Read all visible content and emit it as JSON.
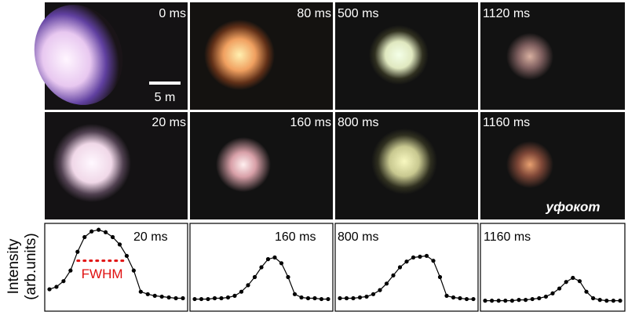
{
  "figure": {
    "y_label": [
      "Intensity",
      "(arb.units)"
    ],
    "scale_bar": "5 m",
    "watermark": "уфокот",
    "images": [
      "0 ms",
      "80 ms",
      "500 ms",
      "1120 ms",
      "20 ms",
      "160 ms",
      "800 ms",
      "1160 ms"
    ]
  },
  "chart_data": [
    {
      "type": "line",
      "label": "20 ms",
      "annotation": "FWHM",
      "color": "#000000",
      "ylim": [
        0,
        100
      ],
      "values": [
        23,
        26,
        33,
        46,
        69,
        87,
        94,
        96,
        93,
        87,
        78,
        64,
        46,
        20,
        17,
        15,
        14,
        13,
        12,
        12
      ]
    },
    {
      "type": "line",
      "label": "160 ms",
      "color": "#000000",
      "ylim": [
        0,
        100
      ],
      "values": [
        11,
        11,
        11,
        12,
        12,
        13,
        15,
        20,
        28,
        38,
        50,
        60,
        62,
        55,
        38,
        17,
        13,
        12,
        12,
        11,
        11
      ]
    },
    {
      "type": "line",
      "label": "800 ms",
      "color": "#000000",
      "ylim": [
        0,
        100
      ],
      "values": [
        12,
        12,
        12,
        13,
        14,
        17,
        22,
        30,
        40,
        50,
        57,
        62,
        63,
        64,
        58,
        38,
        15,
        13,
        12,
        11,
        11
      ]
    },
    {
      "type": "line",
      "label": "1160 ms",
      "color": "#000000",
      "ylim": [
        0,
        100
      ],
      "values": [
        9,
        9,
        9,
        9,
        9,
        10,
        10,
        11,
        12,
        14,
        18,
        24,
        32,
        37,
        33,
        20,
        12,
        10,
        9,
        9,
        9
      ]
    }
  ]
}
